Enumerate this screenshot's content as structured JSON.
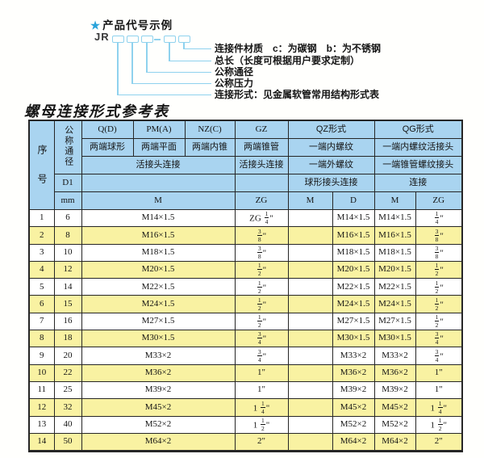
{
  "colors": {
    "header_bg": "#a9d4f0",
    "alt_bg": "#f9f2a2",
    "border": "#262626",
    "line_blue": "#8fd2ee",
    "star": "#29a3da",
    "ink": "#141414",
    "paper": "#fffffd"
  },
  "diagram": {
    "star": "★",
    "title": "产品代号示例",
    "code_prefix": "JR",
    "labels": [
      "连接件材质　c：为碳钢　b：为不锈钢",
      "总长（长度可根据用户要求定制）",
      "公称通径",
      "公称压力",
      "连接形式：见金属软管常用结构形式表"
    ]
  },
  "table": {
    "title": "螺母连接形式参考表",
    "header": {
      "seq": "序号",
      "dn": "公称通径",
      "d1": "D1",
      "mm": "mm",
      "q": "Q(D)",
      "pm": "PM(A)",
      "nz": "NZ(C)",
      "gz": "GZ",
      "qz": "QZ形式",
      "qg": "QG形式",
      "q_desc": "两端球形",
      "pm_desc": "两端平面",
      "nz_desc": "两端内锥",
      "gz_desc": "两端锥管",
      "qz_desc1": "一端内螺纹",
      "qg_desc1": "一端内螺纹活接头",
      "union_conn": "活接头连接",
      "gz_conn": "活接头连接",
      "qz_desc2": "一端外螺纹",
      "qg_desc2": "一端锥管螺纹接头",
      "qz_conn": "球形接头连接",
      "qg_conn": "连接",
      "m_unit": "M",
      "gz_unit": "ZG",
      "qz_m_unit": "M",
      "qz_d_unit": "D",
      "qg_m_unit": "M",
      "qg_zg_unit": "ZG"
    },
    "rows": [
      {
        "seq": "1",
        "dn": "6",
        "m": "M14×1.5",
        "gz": "ZG 1/4\"",
        "qz_m": "",
        "qz_d": "M14×1.5",
        "qg_m": "M14×1.5",
        "qg_zg": "1/4\""
      },
      {
        "seq": "2",
        "dn": "8",
        "m": "M16×1.5",
        "gz": "3/8\"",
        "qz_m": "",
        "qz_d": "M16×1.5",
        "qg_m": "M16×1.5",
        "qg_zg": "3/8\""
      },
      {
        "seq": "3",
        "dn": "10",
        "m": "M18×1.5",
        "gz": "3/8\"",
        "qz_m": "",
        "qz_d": "M18×1.5",
        "qg_m": "M18×1.5",
        "qg_zg": "3/8\""
      },
      {
        "seq": "4",
        "dn": "12",
        "m": "M20×1.5",
        "gz": "1/2\"",
        "qz_m": "",
        "qz_d": "M20×1.5",
        "qg_m": "M20×1.5",
        "qg_zg": "1/2\""
      },
      {
        "seq": "5",
        "dn": "14",
        "m": "M22×1.5",
        "gz": "1/2\"",
        "qz_m": "",
        "qz_d": "M22×1.5",
        "qg_m": "M22×1.5",
        "qg_zg": "1/2\""
      },
      {
        "seq": "6",
        "dn": "15",
        "m": "M24×1.5",
        "gz": "1/2\"",
        "qz_m": "",
        "qz_d": "M24×1.5",
        "qg_m": "M24×1.5",
        "qg_zg": "1/2\""
      },
      {
        "seq": "7",
        "dn": "16",
        "m": "M27×1.5",
        "gz": "1/2\"",
        "qz_m": "",
        "qz_d": "M27×1.5",
        "qg_m": "M27×1.5",
        "qg_zg": "1/2\""
      },
      {
        "seq": "8",
        "dn": "18",
        "m": "M30×1.5",
        "gz": "3/4\"",
        "qz_m": "",
        "qz_d": "M30×1.5",
        "qg_m": "M30×1.5",
        "qg_zg": "3/4\""
      },
      {
        "seq": "9",
        "dn": "20",
        "m": "M33×2",
        "gz": "3/4\"",
        "qz_m": "",
        "qz_d": "M33×2",
        "qg_m": "M33×2",
        "qg_zg": "3/4\""
      },
      {
        "seq": "10",
        "dn": "22",
        "m": "M36×2",
        "gz": "1\"",
        "qz_m": "",
        "qz_d": "M36×2",
        "qg_m": "M36×2",
        "qg_zg": "1\""
      },
      {
        "seq": "11",
        "dn": "25",
        "m": "M39×2",
        "gz": "1\"",
        "qz_m": "",
        "qz_d": "M39×2",
        "qg_m": "M39×2",
        "qg_zg": "1\""
      },
      {
        "seq": "12",
        "dn": "32",
        "m": "M45×2",
        "gz": "1 1/4\"",
        "qz_m": "",
        "qz_d": "M45×2",
        "qg_m": "M45×2",
        "qg_zg": "1 1/4\""
      },
      {
        "seq": "13",
        "dn": "40",
        "m": "M52×2",
        "gz": "1 1/2\"",
        "qz_m": "",
        "qz_d": "M52×2",
        "qg_m": "M52×2",
        "qg_zg": "1 1/2\""
      },
      {
        "seq": "14",
        "dn": "50",
        "m": "M64×2",
        "gz": "2\"",
        "qz_m": "",
        "qz_d": "M64×2",
        "qg_m": "M64×2",
        "qg_zg": "2\""
      }
    ]
  }
}
